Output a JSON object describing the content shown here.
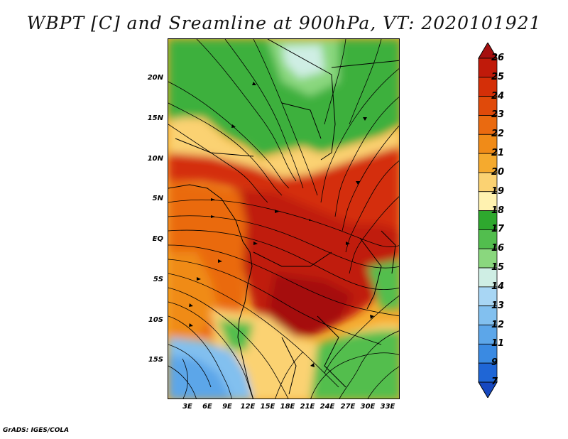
{
  "title": "WBPT [C] and Sreamline at 900hPa, VT: 2020101921",
  "footer": "GrADS: IGES/COLA",
  "lat_labels": [
    "20N",
    "15N",
    "10N",
    "5N",
    "EQ",
    "5S",
    "10S",
    "15S"
  ],
  "lon_labels": [
    "3E",
    "6E",
    "9E",
    "12E",
    "15E",
    "18E",
    "21E",
    "24E",
    "27E",
    "30E",
    "33E"
  ],
  "colorbar": {
    "labels": [
      "26",
      "25",
      "24",
      "23",
      "22",
      "21",
      "20",
      "19",
      "18",
      "17",
      "16",
      "15",
      "14",
      "13",
      "12",
      "11",
      "9",
      "7"
    ],
    "colors": [
      "#a50f0f",
      "#c01a0a",
      "#d42f08",
      "#e04a0a",
      "#ea6a10",
      "#f08b18",
      "#f5aa2e",
      "#fbd272",
      "#fff2b0",
      "#2ea82e",
      "#52be4e",
      "#8ad77e",
      "#cfeee4",
      "#a8d6f4",
      "#82c0ef",
      "#5ca6e9",
      "#3a8ae2",
      "#1f66d6",
      "#1648c0"
    ]
  },
  "map_colors": {
    "deep_red": "#b5170e",
    "red": "#d42f08",
    "orange": "#ea6a10",
    "light_orange": "#f5aa2e",
    "pale_yellow": "#fbe2a0",
    "green": "#2ea82e",
    "light_green": "#8ad77e",
    "pale_blue": "#cfeee4",
    "blue": "#82c0ef",
    "ocean_blue": "#a8d6f4"
  }
}
